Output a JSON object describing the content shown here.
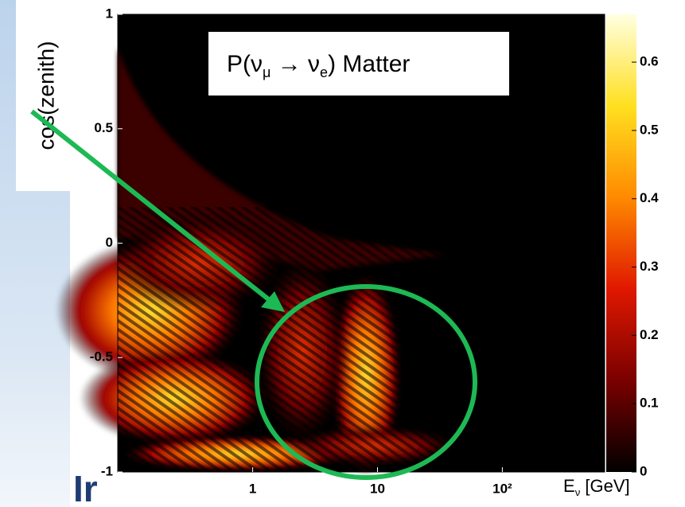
{
  "chart_data": {
    "type": "heatmap",
    "title": [
      "P(ν",
      "μ",
      " → ν",
      "e",
      ") Matter"
    ],
    "x_label": [
      "E",
      "ν",
      " [GeV]"
    ],
    "y_label": "cos(zenith)",
    "x_log": true,
    "xlim": [
      0.083,
      660
    ],
    "xticks": [
      1,
      10,
      {
        "value": 100,
        "label": "10²"
      }
    ],
    "ylim": [
      -1,
      1
    ],
    "yticks": [
      -1,
      -0.5,
      0,
      0.5,
      1
    ],
    "clim": [
      0,
      0.67
    ],
    "cticks": [
      0,
      0.1,
      0.2,
      0.3,
      0.4,
      0.5,
      0.6
    ],
    "colormap": [
      "#000000",
      "#7a0000",
      "#e01800",
      "#ff8a00",
      "#ffe020",
      "#ffffe0"
    ],
    "annotation_color": "#1db954",
    "background_text": "Ir"
  }
}
